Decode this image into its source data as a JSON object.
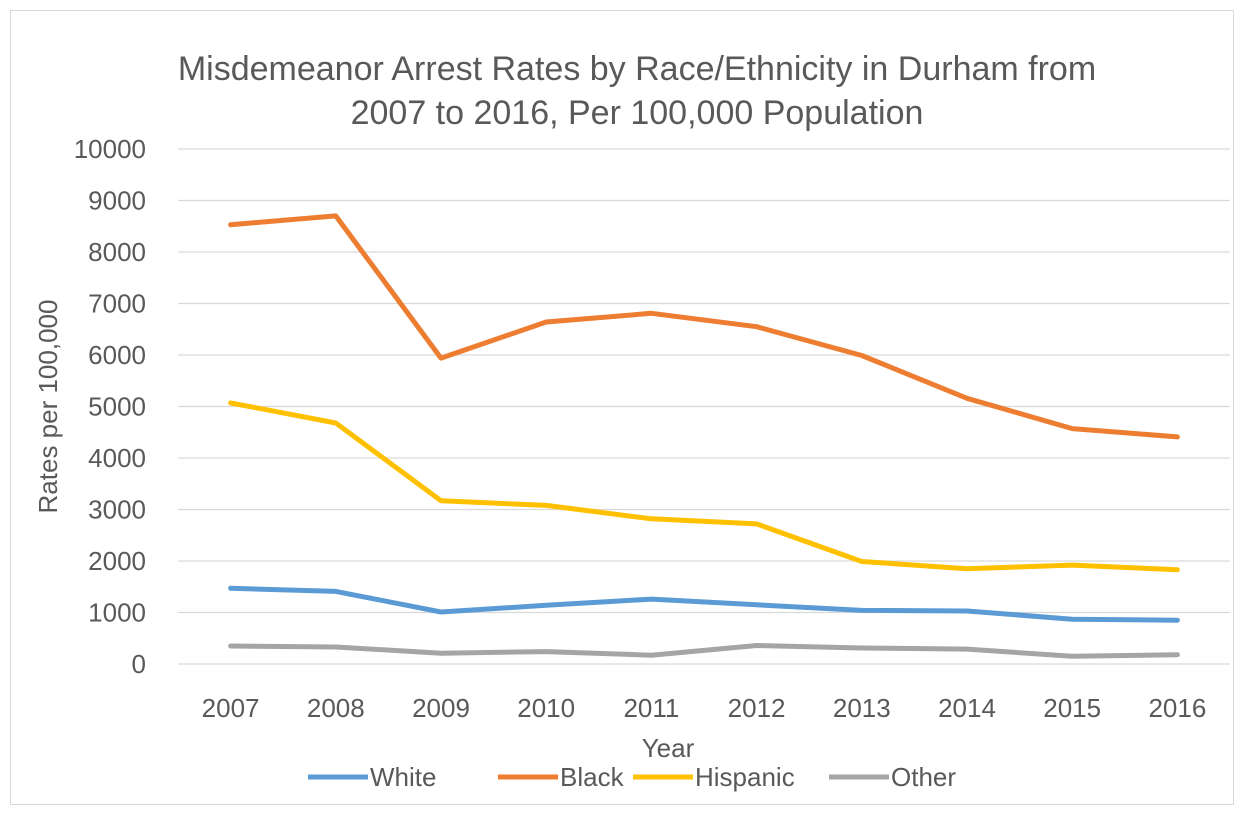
{
  "chart_data": {
    "type": "line",
    "title_lines": [
      "Misdemeanor Arrest Rates by Race/Ethnicity in Durham from",
      "2007 to 2016, Per 100,000 Population"
    ],
    "xlabel": "Year",
    "ylabel": "Rates per 100,000",
    "ylim": [
      0,
      10000
    ],
    "y_ticks": [
      "0",
      "1000",
      "2000",
      "3000",
      "4000",
      "5000",
      "6000",
      "7000",
      "8000",
      "9000",
      "10000"
    ],
    "categories": [
      "2007",
      "2008",
      "2009",
      "2010",
      "2011",
      "2012",
      "2013",
      "2014",
      "2015",
      "2016"
    ],
    "grid": true,
    "legend_position": "bottom",
    "series": [
      {
        "name": "White",
        "color": "#5B9BD5",
        "values": [
          1470,
          1410,
          1010,
          1140,
          1260,
          1150,
          1040,
          1030,
          870,
          850
        ]
      },
      {
        "name": "Black",
        "color": "#ED7D31",
        "values": [
          8530,
          8700,
          5940,
          6640,
          6810,
          6550,
          5990,
          5160,
          4570,
          4410
        ]
      },
      {
        "name": "Hispanic",
        "color": "#FFC000",
        "values": [
          5070,
          4680,
          3170,
          3080,
          2820,
          2720,
          1990,
          1850,
          1920,
          1830
        ]
      },
      {
        "name": "Other",
        "color": "#A5A5A5",
        "values": [
          350,
          330,
          210,
          240,
          170,
          360,
          310,
          290,
          150,
          180
        ]
      }
    ]
  }
}
